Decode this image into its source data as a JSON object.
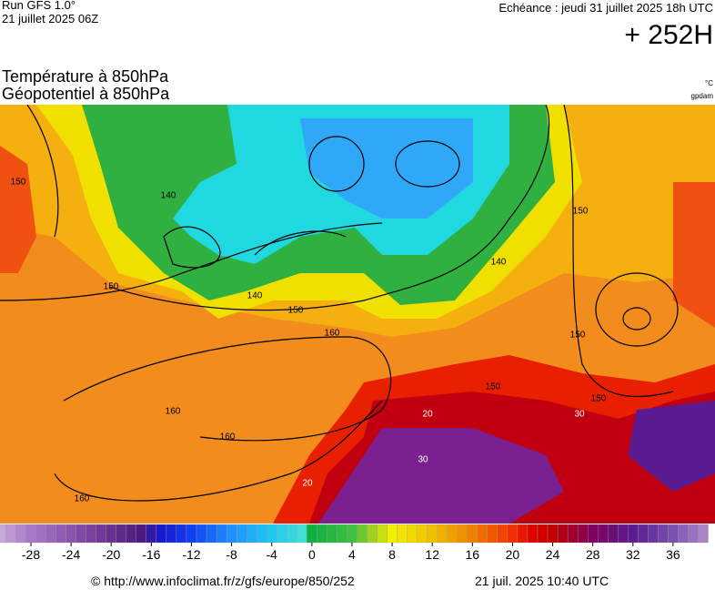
{
  "header": {
    "run": "Run GFS 1.0°",
    "date": "21 juillet 2025 06Z",
    "echeance": "Echéance : jeudi 31 juillet 2025 18h UTC",
    "lead": "+ 252H",
    "title1": "Température à 850hPa",
    "title2": "Géopotentiel à 850hPa",
    "unit1": "°C",
    "unit2": "gpdam"
  },
  "map": {
    "contour_labels": [
      150,
      140,
      150,
      140,
      150,
      160,
      160,
      160,
      160,
      150,
      140,
      150,
      150,
      150,
      20,
      20,
      30,
      30
    ]
  },
  "colorbar": {
    "ticks": [
      -28,
      -24,
      -20,
      -16,
      -12,
      -8,
      -4,
      0,
      4,
      8,
      12,
      16,
      20,
      24,
      28,
      32,
      36
    ]
  },
  "footer": {
    "url": "© http://www.infoclimat.fr/z/gfs/europe/850/252",
    "timestamp": "21 juil. 2025 10:40 UTC"
  }
}
